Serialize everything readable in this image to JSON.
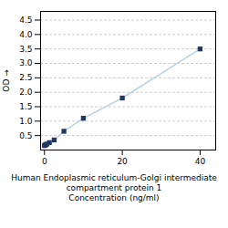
{
  "chart_data": {
    "type": "line",
    "x": [
      0,
      0.156,
      0.313,
      0.625,
      1.25,
      2.5,
      5,
      10,
      20,
      40
    ],
    "series": [
      {
        "type": "line",
        "color": "#b8d4e8",
        "values": [
          0.152,
          0.168,
          0.183,
          0.207,
          0.257,
          0.347,
          0.65,
          1.1,
          1.8,
          3.5
        ]
      },
      {
        "type": "scatter",
        "marker": "square",
        "color": "#1f3864",
        "values": [
          0.152,
          0.168,
          0.183,
          0.207,
          0.257,
          0.347,
          0.65,
          1.1,
          1.8,
          3.5
        ]
      }
    ],
    "ylabel": "OD",
    "xlabel": "Human Endoplasmic reticulum-Golgi intermediate compartment protein 1\nConcentration (ng/ml)",
    "xlim": [
      -1,
      44
    ],
    "xticks": [
      0,
      20,
      40
    ],
    "ylim": [
      0.0,
      4.8
    ],
    "yticks": [
      0.5,
      {
        "value": 1.0,
        "label": "1.0"
      },
      1.5,
      {
        "value": 2.0,
        "label": "2.0"
      },
      2.5,
      {
        "value": 3.0,
        "label": "3.0"
      },
      3.5,
      {
        "value": 4.0,
        "label": "4.0"
      },
      4.5
    ],
    "grid": "y"
  }
}
